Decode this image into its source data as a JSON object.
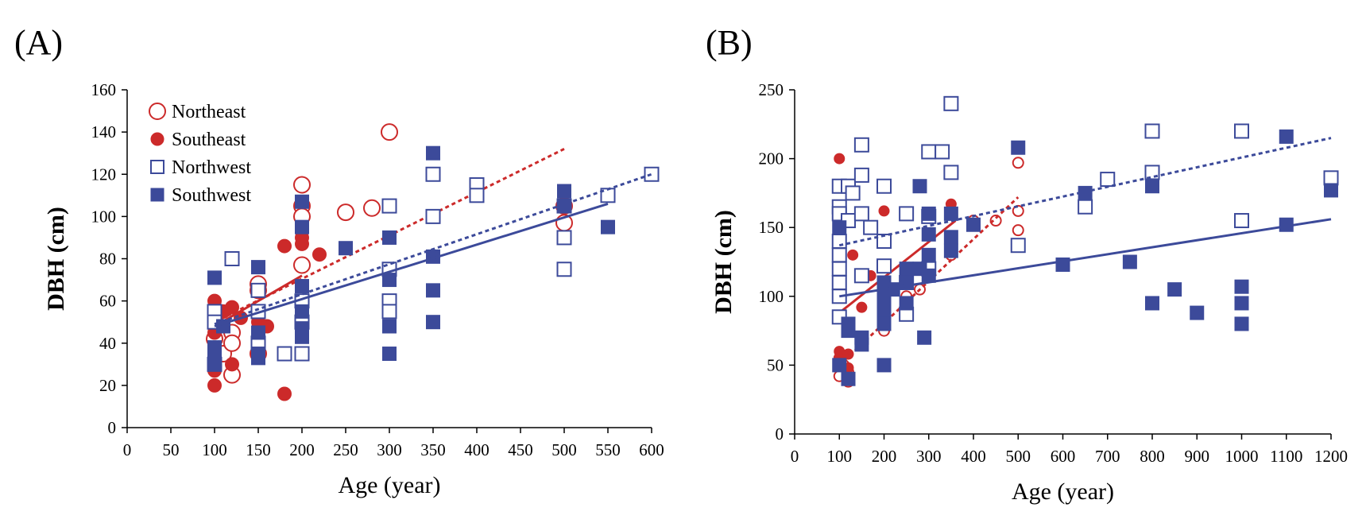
{
  "colors": {
    "red": "#cc2a2a",
    "blue": "#3c4a9a",
    "axis": "#000000"
  },
  "chart_data": [
    {
      "type": "scatter",
      "panel_label": "(A)",
      "xlabel": "Age (year)",
      "ylabel": "DBH (cm)",
      "xlim": [
        0,
        600
      ],
      "ylim": [
        0,
        160
      ],
      "xticks": [
        0,
        50,
        100,
        150,
        200,
        250,
        300,
        350,
        400,
        450,
        500,
        550,
        600
      ],
      "yticks": [
        0,
        20,
        40,
        60,
        80,
        100,
        120,
        140,
        160
      ],
      "grid": false,
      "legend": {
        "placement": "top-left",
        "entries": [
          "Northeast",
          "Southeast",
          "Northwest",
          "Southwest"
        ]
      },
      "series": [
        {
          "name": "Northeast",
          "marker": "open-circle",
          "color": "#cc2a2a",
          "size": "large",
          "x": [
            100,
            110,
            120,
            120,
            120,
            150,
            150,
            150,
            200,
            200,
            200,
            200,
            250,
            280,
            300,
            500,
            500
          ],
          "y": [
            42,
            35,
            25,
            45,
            40,
            35,
            65,
            68,
            115,
            105,
            100,
            77,
            102,
            104,
            140,
            105,
            97
          ],
          "trend": {
            "style": "dotted",
            "x": [
              100,
              500
            ],
            "y": [
              50,
              132
            ]
          }
        },
        {
          "name": "Southeast",
          "marker": "filled-circle",
          "color": "#cc2a2a",
          "size": "medium",
          "x": [
            100,
            100,
            100,
            100,
            110,
            120,
            120,
            130,
            150,
            160,
            180,
            180,
            200,
            200,
            200,
            220
          ],
          "y": [
            60,
            45,
            27,
            20,
            55,
            57,
            30,
            52,
            50,
            48,
            86,
            16,
            90,
            87,
            67,
            82
          ],
          "trend": {
            "style": "solid",
            "x": [
              100,
              200
            ],
            "y": [
              48,
              72
            ]
          }
        },
        {
          "name": "Northwest",
          "marker": "open-square",
          "color": "#3c4a9a",
          "size": "medium",
          "x": [
            100,
            100,
            100,
            120,
            150,
            150,
            150,
            180,
            200,
            200,
            200,
            300,
            300,
            300,
            300,
            350,
            350,
            400,
            400,
            500,
            500,
            500,
            550,
            600
          ],
          "y": [
            55,
            50,
            30,
            80,
            65,
            55,
            40,
            35,
            60,
            50,
            35,
            105,
            75,
            60,
            55,
            120,
            100,
            115,
            110,
            105,
            90,
            75,
            110,
            120
          ],
          "trend": {
            "style": "dotted",
            "x": [
              100,
              600
            ],
            "y": [
              49,
              120
            ]
          }
        },
        {
          "name": "Southwest",
          "marker": "filled-square",
          "color": "#3c4a9a",
          "size": "medium",
          "x": [
            100,
            100,
            100,
            100,
            110,
            150,
            150,
            150,
            150,
            200,
            200,
            200,
            200,
            200,
            200,
            250,
            300,
            300,
            300,
            300,
            350,
            350,
            350,
            350,
            500,
            500,
            550
          ],
          "y": [
            71,
            38,
            35,
            30,
            48,
            76,
            45,
            35,
            33,
            107,
            95,
            67,
            55,
            47,
            43,
            85,
            90,
            70,
            48,
            35,
            130,
            81,
            65,
            50,
            112,
            105,
            95
          ],
          "trend": {
            "style": "solid",
            "x": [
              100,
              550
            ],
            "y": [
              48,
              106
            ]
          }
        }
      ]
    },
    {
      "type": "scatter",
      "panel_label": "(B)",
      "xlabel": "Age (year)",
      "ylabel": "DBH (cm)",
      "xlim": [
        0,
        1200
      ],
      "ylim": [
        0,
        250
      ],
      "xticks": [
        0,
        100,
        200,
        300,
        400,
        500,
        600,
        700,
        800,
        900,
        1000,
        1100,
        1200
      ],
      "xtick_labels": [
        "0",
        "100",
        "200",
        "300",
        "400",
        "500",
        "600",
        "700",
        "800",
        "900",
        "1000",
        "1100",
        "1200"
      ],
      "yticks": [
        0,
        50,
        100,
        150,
        200,
        250
      ],
      "grid": false,
      "series": [
        {
          "name": "",
          "marker": "open-circle",
          "color": "#cc2a2a",
          "size": "small",
          "x": [
            100,
            100,
            110,
            120,
            120,
            150,
            200,
            250,
            280,
            300,
            350,
            400,
            450,
            500,
            500,
            500
          ],
          "y": [
            42,
            55,
            50,
            38,
            45,
            115,
            75,
            100,
            105,
            115,
            130,
            155,
            155,
            197,
            162,
            148
          ],
          "trend": {
            "style": "dotted",
            "x": [
              100,
              500
            ],
            "y": [
              50,
              172
            ]
          }
        },
        {
          "name": "",
          "marker": "filled-circle",
          "color": "#cc2a2a",
          "size": "small",
          "x": [
            100,
            100,
            100,
            120,
            120,
            130,
            150,
            170,
            200,
            350
          ],
          "y": [
            200,
            60,
            55,
            58,
            48,
            130,
            92,
            115,
            162,
            167
          ],
          "trend": {
            "style": "solid",
            "x": [
              100,
              360
            ],
            "y": [
              88,
              155
            ]
          }
        },
        {
          "name": "",
          "marker": "open-square",
          "color": "#3c4a9a",
          "size": "medium",
          "x": [
            100,
            100,
            100,
            100,
            100,
            100,
            100,
            100,
            100,
            120,
            120,
            130,
            150,
            150,
            150,
            150,
            170,
            200,
            200,
            200,
            250,
            250,
            250,
            300,
            300,
            300,
            330,
            350,
            350,
            500,
            650,
            700,
            800,
            800,
            1000,
            1000,
            1200
          ],
          "y": [
            180,
            165,
            160,
            140,
            130,
            120,
            110,
            100,
            85,
            180,
            155,
            175,
            210,
            188,
            160,
            115,
            150,
            180,
            140,
            122,
            160,
            110,
            87,
            205,
            158,
            120,
            205,
            240,
            190,
            137,
            165,
            185,
            220,
            190,
            220,
            155,
            186
          ],
          "trend": {
            "style": "dotted",
            "x": [
              100,
              1200
            ],
            "y": [
              137,
              215
            ]
          }
        },
        {
          "name": "",
          "marker": "filled-square",
          "color": "#3c4a9a",
          "size": "medium",
          "x": [
            100,
            100,
            120,
            120,
            120,
            150,
            150,
            200,
            200,
            200,
            200,
            200,
            220,
            250,
            250,
            250,
            280,
            280,
            290,
            300,
            300,
            300,
            300,
            350,
            350,
            350,
            400,
            500,
            600,
            650,
            750,
            800,
            800,
            850,
            900,
            1000,
            1000,
            1000,
            1100,
            1100,
            1200
          ],
          "y": [
            150,
            50,
            80,
            75,
            40,
            70,
            65,
            110,
            100,
            90,
            80,
            50,
            105,
            120,
            110,
            95,
            180,
            120,
            70,
            160,
            145,
            130,
            115,
            160,
            143,
            133,
            152,
            208,
            123,
            175,
            125,
            180,
            95,
            105,
            88,
            107,
            95,
            80,
            216,
            152,
            177
          ],
          "trend": {
            "style": "solid",
            "x": [
              100,
              1200
            ],
            "y": [
              100,
              156
            ]
          }
        }
      ]
    }
  ]
}
